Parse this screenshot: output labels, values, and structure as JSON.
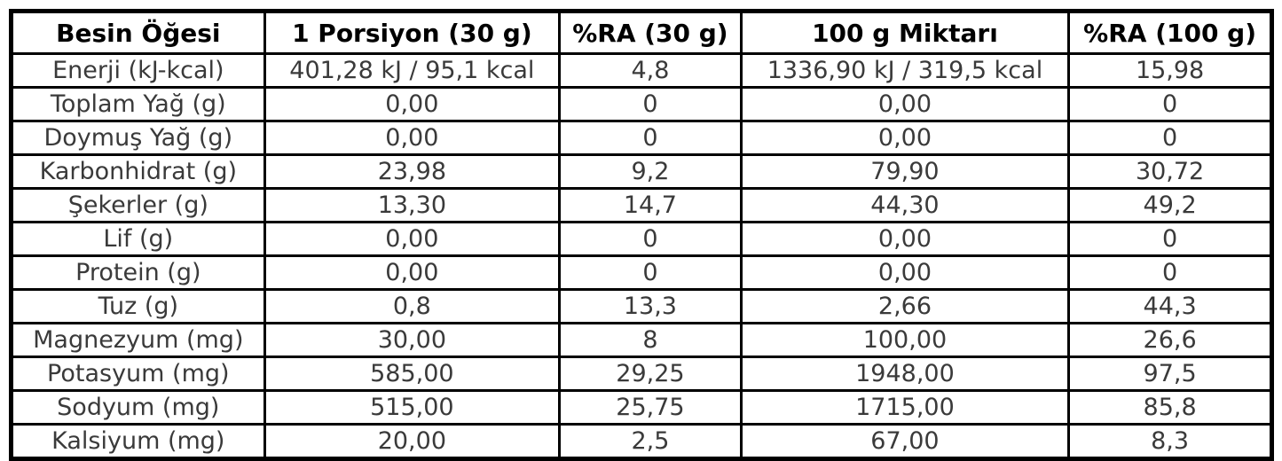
{
  "chart_data": {
    "type": "table",
    "columns": [
      "Besin Öğesi",
      "1 Porsiyon (30 g)",
      "%RA (30 g)",
      "100 g Miktarı",
      "%RA (100 g)"
    ],
    "rows": [
      [
        "Enerji (kJ-kcal)",
        "401,28 kJ / 95,1 kcal",
        "4,8",
        "1336,90 kJ / 319,5 kcal",
        "15,98"
      ],
      [
        "Toplam Yağ (g)",
        "0,00",
        "0",
        "0,00",
        "0"
      ],
      [
        "Doymuş Yağ (g)",
        "0,00",
        "0",
        "0,00",
        "0"
      ],
      [
        "Karbonhidrat (g)",
        "23,98",
        "9,2",
        "79,90",
        "30,72"
      ],
      [
        "Şekerler (g)",
        "13,30",
        "14,7",
        "44,30",
        "49,2"
      ],
      [
        "Lif (g)",
        "0,00",
        "0",
        "0,00",
        "0"
      ],
      [
        "Protein (g)",
        "0,00",
        "0",
        "0,00",
        "0"
      ],
      [
        "Tuz (g)",
        "0,8",
        "13,3",
        "2,66",
        "44,3"
      ],
      [
        "Magnezyum (mg)",
        "30,00",
        "8",
        "100,00",
        "26,6"
      ],
      [
        "Potasyum (mg)",
        "585,00",
        "29,25",
        "1948,00",
        "97,5"
      ],
      [
        "Sodyum (mg)",
        "515,00",
        "25,75",
        "1715,00",
        "85,8"
      ],
      [
        "Kalsiyum (mg)",
        "20,00",
        "2,5",
        "67,00",
        "8,3"
      ]
    ],
    "layout": {
      "grid": true,
      "column_widths_pct": [
        20.1,
        23.4,
        14.4,
        26.0,
        16.1
      ]
    }
  },
  "colors": {
    "border": "#000000",
    "header_text": "#000000",
    "body_text": "#3a3a3a",
    "background": "#ffffff"
  }
}
